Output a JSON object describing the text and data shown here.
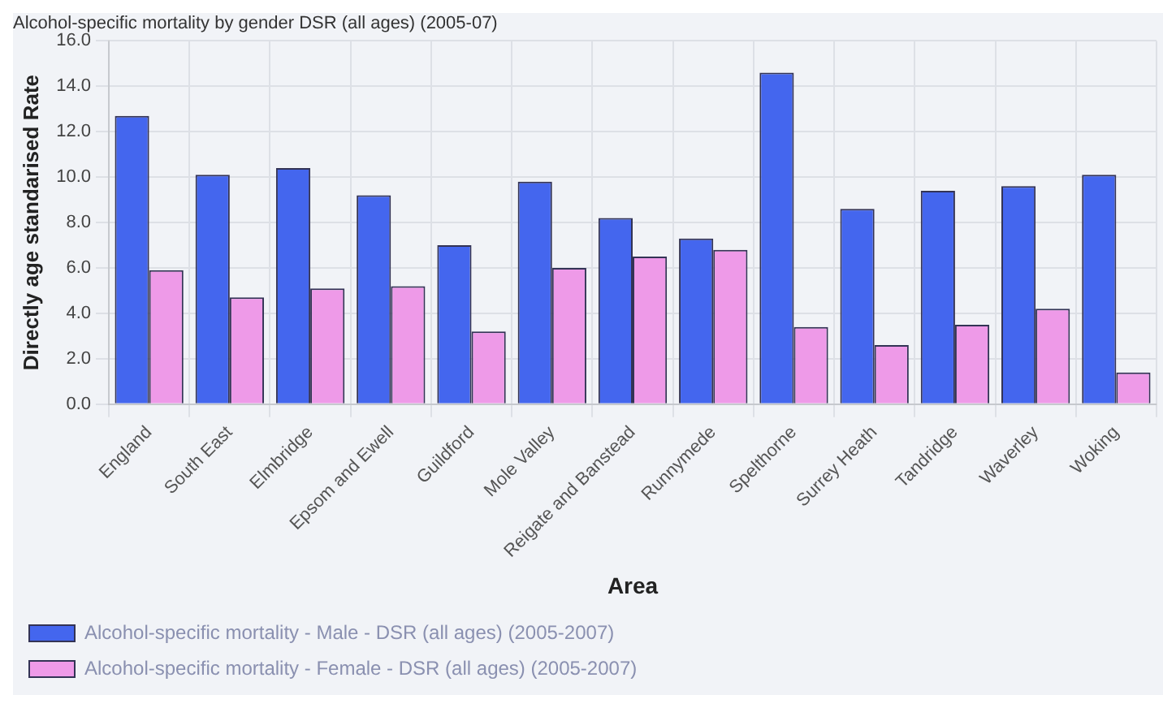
{
  "chart_data": {
    "type": "bar",
    "title": "Alcohol-specific mortality by gender DSR (all ages) (2005-07)",
    "xlabel": "Area",
    "ylabel": "Directly age standarised Rate",
    "categories": [
      "England",
      "South East",
      "Elmbridge",
      "Epsom and Ewell",
      "Guildford",
      "Mole Valley",
      "Reigate and Banstead",
      "Runnymede",
      "Spelthorne",
      "Surrey Heath",
      "Tandridge",
      "Waverley",
      "Woking"
    ],
    "series": [
      {
        "name": "Alcohol-specific mortality - Male - DSR (all ages) (2005-2007)",
        "color": "#4466ee",
        "values": [
          12.7,
          10.1,
          10.4,
          9.2,
          7.0,
          9.8,
          8.2,
          7.3,
          14.6,
          8.6,
          9.4,
          9.6,
          10.1
        ]
      },
      {
        "name": "Alcohol-specific mortality - Female - DSR (all ages) (2005-2007)",
        "color": "#ee9ae8",
        "values": [
          5.9,
          4.7,
          5.1,
          5.2,
          3.2,
          6.0,
          6.5,
          6.8,
          3.4,
          2.6,
          3.5,
          4.2,
          1.4
        ]
      }
    ],
    "ylim": [
      0,
      16
    ],
    "yticks": [
      {
        "value": 0,
        "label": "0.0"
      },
      {
        "value": 2,
        "label": "2.0"
      },
      {
        "value": 4,
        "label": "4.0"
      },
      {
        "value": 6,
        "label": "6.0"
      },
      {
        "value": 8,
        "label": "8.0"
      },
      {
        "value": 10,
        "label": "10.0"
      },
      {
        "value": 12,
        "label": "12.0"
      },
      {
        "value": 14,
        "label": "14.0"
      },
      {
        "value": 16,
        "label": "16.0"
      }
    ],
    "grid": true,
    "legend": "bottom"
  }
}
